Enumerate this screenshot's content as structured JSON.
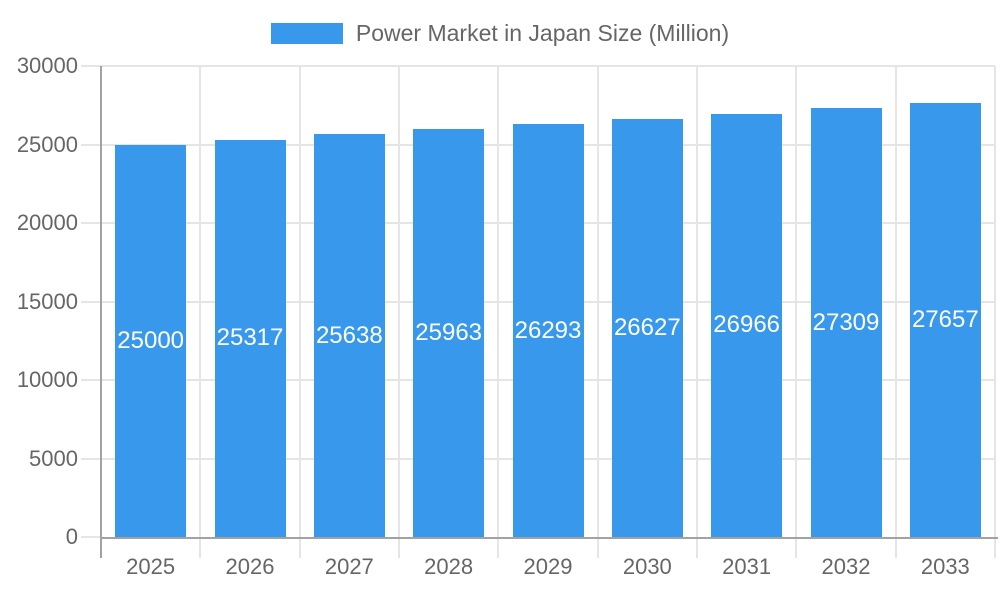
{
  "chart_data": {
    "type": "bar",
    "title": "Power Market in Japan Size (Million)",
    "categories": [
      "2025",
      "2026",
      "2027",
      "2028",
      "2029",
      "2030",
      "2031",
      "2032",
      "2033"
    ],
    "values": [
      25000,
      25317,
      25638,
      25963,
      26293,
      26627,
      26966,
      27309,
      27657
    ],
    "xlabel": "",
    "ylabel": "",
    "ylim": [
      0,
      30000
    ],
    "ytick_step": 5000,
    "ytick_labels": [
      "0",
      "5000",
      "10000",
      "15000",
      "20000",
      "25000",
      "30000"
    ],
    "bar_value_labels": [
      "25000",
      "25317",
      "25638",
      "25963",
      "26293",
      "26627",
      "26966",
      "27309",
      "27657"
    ],
    "legend_position": "top-center",
    "grid": true,
    "bar_label_position": "inside-center",
    "colors": {
      "bar": "#3898ec",
      "axis": "#a2a2a2",
      "grid": "#e5e5e5",
      "tick_text": "#666666",
      "bar_label_text": "#ffffff",
      "background": "#ffffff"
    }
  }
}
